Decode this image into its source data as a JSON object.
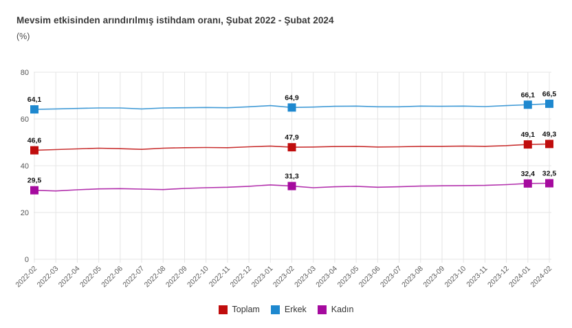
{
  "title": "Mevsim etkisinden arındırılmış istihdam oranı, Şubat 2022 - Şubat 2024",
  "subtitle": "(%)",
  "colors": {
    "grid": "#e4e4e4",
    "axis_text": "#5a5a5a",
    "point_label_text": "#111111",
    "title_text": "#383838"
  },
  "chart_data": {
    "type": "line",
    "x": [
      "2022-02",
      "2022-03",
      "2022-04",
      "2022-05",
      "2022-06",
      "2022-07",
      "2022-08",
      "2022-09",
      "2022-10",
      "2022-11",
      "2022-12",
      "2023-01",
      "2023-02",
      "2023-03",
      "2023-04",
      "2023-05",
      "2023-06",
      "2023-07",
      "2023-08",
      "2023-09",
      "2023-10",
      "2023-11",
      "2023-12",
      "2024-01",
      "2024-02"
    ],
    "series": [
      {
        "name": "Toplam",
        "color": "#c00d0d",
        "values": [
          46.6,
          46.9,
          47.2,
          47.5,
          47.3,
          47.0,
          47.5,
          47.7,
          47.8,
          47.7,
          48.1,
          48.4,
          47.9,
          48.0,
          48.2,
          48.3,
          48.0,
          48.1,
          48.3,
          48.3,
          48.4,
          48.3,
          48.6,
          49.1,
          49.3
        ]
      },
      {
        "name": "Erkek",
        "color": "#1e88cf",
        "values": [
          64.1,
          64.3,
          64.5,
          64.7,
          64.7,
          64.3,
          64.7,
          64.8,
          64.9,
          64.8,
          65.2,
          65.7,
          64.9,
          65.1,
          65.4,
          65.5,
          65.2,
          65.2,
          65.5,
          65.4,
          65.5,
          65.3,
          65.7,
          66.1,
          66.5
        ]
      },
      {
        "name": "Kadın",
        "color": "#a50a9e",
        "values": [
          29.5,
          29.2,
          29.7,
          30.1,
          30.2,
          30.0,
          29.8,
          30.3,
          30.6,
          30.8,
          31.2,
          31.8,
          31.3,
          30.6,
          31.0,
          31.2,
          30.8,
          31.0,
          31.3,
          31.4,
          31.5,
          31.6,
          31.9,
          32.4,
          32.5
        ]
      }
    ],
    "labeled_indices": [
      0,
      12,
      23,
      24
    ],
    "labeled_values": {
      "Toplam": [
        "46,6",
        "47,9",
        "49,1",
        "49,3"
      ],
      "Erkek": [
        "64,1",
        "64,9",
        "66,1",
        "66,5"
      ],
      "Kadın": [
        "29,5",
        "31,3",
        "32,4",
        "32,5"
      ]
    },
    "y_ticks": [
      0,
      20,
      40,
      60,
      80
    ],
    "ylim": [
      0,
      80
    ],
    "grid": true,
    "legend_position": "bottom",
    "decimal_separator": ","
  }
}
